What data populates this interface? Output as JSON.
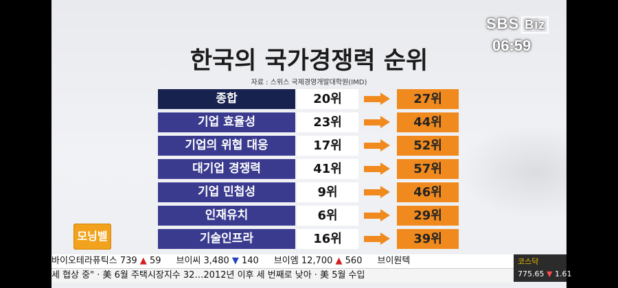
{
  "broadcast": {
    "logo_main": "SBS",
    "logo_box": "Biz",
    "clock": "06:59"
  },
  "slide": {
    "title": "한국의 국가경쟁력 순위",
    "source": "자료 : 스위스 국제경영개발대학원(IMD)",
    "rows": [
      {
        "label": "종합",
        "before": "20위",
        "after": "27위"
      },
      {
        "label": "기업 효율성",
        "before": "23위",
        "after": "44위"
      },
      {
        "label": "기업의 위협 대응",
        "before": "17위",
        "after": "52위"
      },
      {
        "label": "대기업 경쟁력",
        "before": "41위",
        "after": "57위"
      },
      {
        "label": "기업 민첩성",
        "before": "9위",
        "after": "46위"
      },
      {
        "label": "인재유치",
        "before": "6위",
        "after": "29위"
      },
      {
        "label": "기술인프라",
        "before": "16위",
        "after": "39위"
      }
    ]
  },
  "program_badge": "모닝벨",
  "ticker": {
    "stocks": [
      {
        "name": "바이오테라퓨틱스",
        "price": "739",
        "dir": "▲",
        "change": "59"
      },
      {
        "name": "브이씨",
        "price": "3,480",
        "dir": "▼",
        "change": "140"
      },
      {
        "name": "브이엠",
        "price": "12,700",
        "dir": "▲",
        "change": "560"
      },
      {
        "name": "브이원텍",
        "price": "",
        "dir": "",
        "change": ""
      }
    ],
    "headline": "세 협상 중\" · 美 6월 주택시장지수 32…2012년 이후 세 번째로 낮아 · 美 5월 수입"
  },
  "market": {
    "name": "코스닥",
    "value": "775.65",
    "dir": "▼",
    "change": "1.61"
  },
  "colors": {
    "label_bg": "#3a3b8e",
    "first_label_bg": "#17224f",
    "accent_orange": "#f08a1e",
    "up_red": "#d21e1e",
    "down_blue": "#2443b8"
  }
}
